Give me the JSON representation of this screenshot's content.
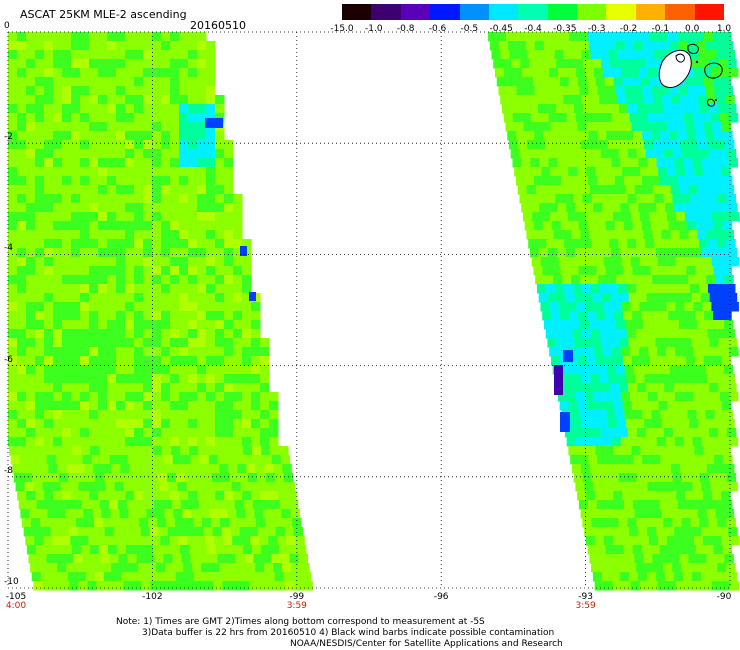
{
  "header": {
    "title": "ASCAT 25KM MLE-2 ascending",
    "date": "20160510"
  },
  "colorbar": {
    "labels": [
      "-15.0",
      "-1.0",
      "-0.8",
      "-0.6",
      "-0.5",
      "-0.45",
      "-0.4",
      "-0.35",
      "-0.3",
      "-0.2",
      "-0.1",
      "0.0",
      "1.0"
    ],
    "colors": [
      "#1a0000",
      "#3c0070",
      "#5a00b8",
      "#0018ff",
      "#0090ff",
      "#00e8ff",
      "#00ffb0",
      "#00ff3a",
      "#7cff00",
      "#e8ff00",
      "#ffb000",
      "#ff6000",
      "#ff1400"
    ]
  },
  "map": {
    "lat_range": [
      -10,
      0
    ],
    "lon_range": [
      -105,
      -90
    ],
    "lat_ticks": [
      "0",
      "-2",
      "-4",
      "-6",
      "-8",
      "-10"
    ],
    "lon_ticks": [
      "-105",
      "-102",
      "-99",
      "-96",
      "-93",
      "-90"
    ],
    "time_labels": [
      {
        "lon": -105,
        "text": "4:00"
      },
      {
        "lon": -99,
        "text": "3:59"
      },
      {
        "lon": -93,
        "text": "3:59"
      }
    ]
  },
  "notes": {
    "line1": "Note: 1) Times are GMT 2)Times along bottom correspond to measurement at -5S",
    "line2": "3)Data buffer is 22 hrs from 20160510 4) Black wind barbs indicate possible contamination",
    "line3": "NOAA/NESDIS/Center for Satellite Applications and Research"
  },
  "palette": {
    "lime": "#8cff00",
    "green": "#3cff20",
    "mint": "#00ff9a",
    "cyan": "#00f0ff",
    "blue": "#0040ff",
    "violet": "#4000b0",
    "grid": "#000000"
  }
}
